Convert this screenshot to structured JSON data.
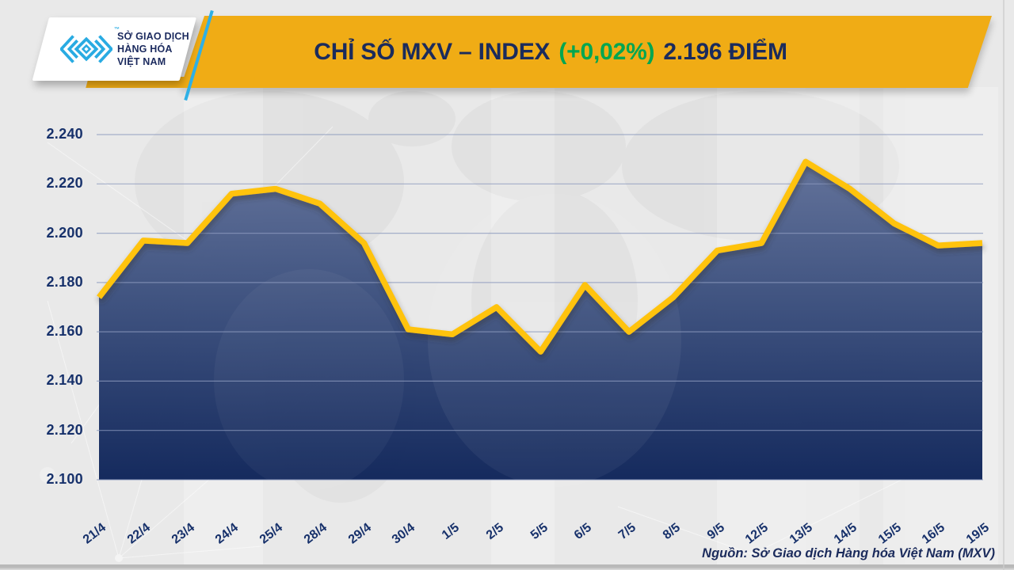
{
  "header": {
    "logo": {
      "tm": "™",
      "line1": "SỞ GIAO DỊCH",
      "line2": "HÀNG HÓA",
      "line3": "VIỆT NAM",
      "mark_icon": "mxv-chevron-diamond-mark",
      "mark_color": "#29ABE2"
    },
    "title": {
      "part_label": "CHỈ SỐ MXV – INDEX",
      "part_change": "(+0,02%)",
      "part_value": "2.196 ĐIỂM"
    },
    "banner_color": "#F0AC15",
    "navy": "#1B2B5C",
    "green": "#00A651"
  },
  "chart_data": {
    "type": "area",
    "title": "CHỈ SỐ MXV – INDEX (+0,02%) 2.196 ĐIỂM",
    "x": [
      "21/4",
      "22/4",
      "23/4",
      "24/4",
      "25/4",
      "28/4",
      "29/4",
      "30/4",
      "1/5",
      "2/5",
      "5/5",
      "6/5",
      "7/5",
      "8/5",
      "9/5",
      "12/5",
      "13/5",
      "14/5",
      "15/5",
      "16/5",
      "19/5"
    ],
    "series": [
      {
        "name": "MXV-Index",
        "values": [
          2.174,
          2.197,
          2.196,
          2.216,
          2.218,
          2.212,
          2.196,
          2.161,
          2.159,
          2.17,
          2.152,
          2.179,
          2.16,
          2.174,
          2.193,
          2.196,
          2.229,
          2.218,
          2.204,
          2.195,
          2.196
        ]
      }
    ],
    "ylim": [
      2.1,
      2.24
    ],
    "yticks": [
      2.24,
      2.22,
      2.2,
      2.18,
      2.16,
      2.14,
      2.12,
      2.1
    ],
    "ytick_labels": [
      "2.240",
      "2.220",
      "2.200",
      "2.180",
      "2.160",
      "2.140",
      "2.120",
      "2.100"
    ],
    "xlabel": "",
    "ylabel": "",
    "grid": true,
    "legend_position": "none",
    "colors": {
      "line": "#FFC30E",
      "fill_top": "#66759D",
      "fill_mid": "#3D517F",
      "fill_bottom": "#0E2459",
      "gridline": "#8C9ABD",
      "axis_text": "#17316B"
    }
  },
  "footer": {
    "source": "Nguồn: Sở Giao dịch Hàng hóa Việt Nam (MXV)"
  }
}
